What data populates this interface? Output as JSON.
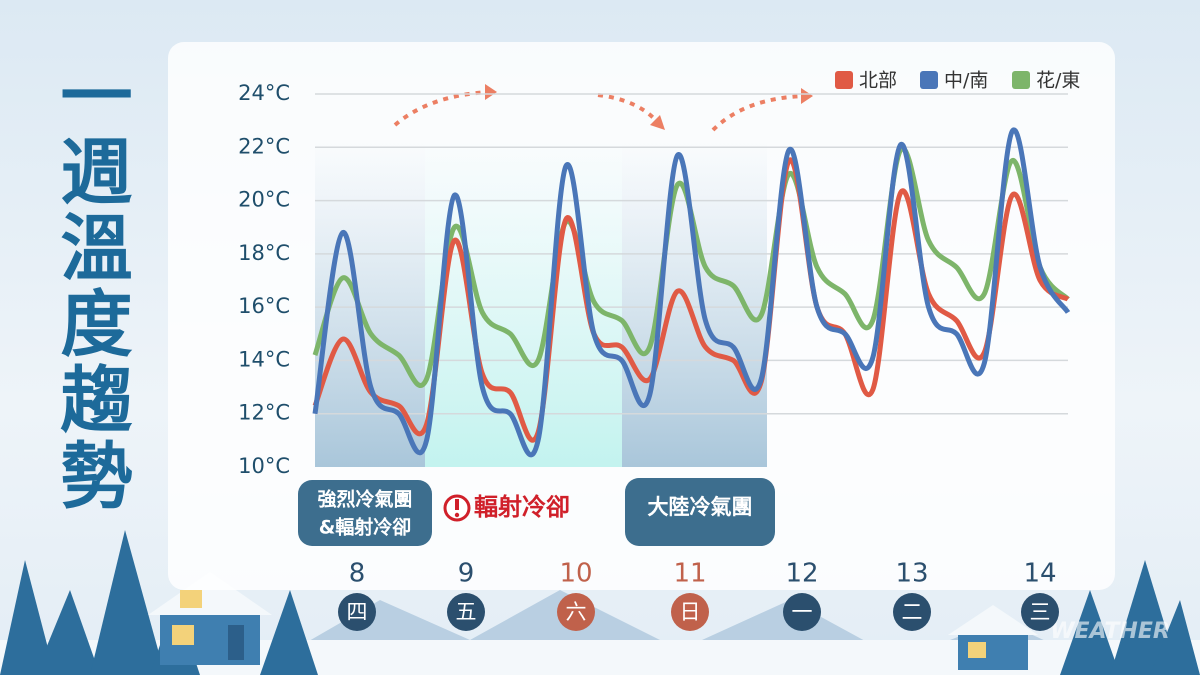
{
  "chart_data": {
    "type": "line",
    "title": "一週溫度趨勢",
    "categories": [
      null,
      null,
      null,
      null,
      null,
      null,
      null,
      null,
      null,
      null,
      null,
      null,
      null,
      null,
      null,
      null,
      null,
      null,
      null,
      null,
      null,
      null,
      null,
      null,
      null,
      null,
      null,
      null
    ],
    "series": [
      {
        "name": "北部",
        "color": "#e05a45",
        "values": [
          12.3,
          14.8,
          12.8,
          12.3,
          11.6,
          18.5,
          13.5,
          12.8,
          11.3,
          19.3,
          15,
          14.5,
          13.3,
          16.6,
          14.5,
          14,
          13.2,
          21.5,
          16,
          15,
          12.9,
          20.3,
          16.5,
          15.5,
          14.3,
          20.2,
          17,
          16.3
        ]
      },
      {
        "name": "中/南",
        "color": "#4a76b8",
        "values": [
          12,
          18.8,
          13,
          12,
          11,
          20.2,
          13,
          12,
          11,
          21.3,
          15,
          14,
          12.7,
          21.7,
          15.5,
          14.5,
          13.3,
          21.9,
          16,
          15,
          14.1,
          22.1,
          16,
          15,
          13.9,
          22.6,
          17.5,
          15.8
        ]
      },
      {
        "name": "花/東",
        "color": "#7db56a",
        "values": [
          14.2,
          17.1,
          15,
          14.2,
          13.3,
          19,
          15.8,
          15,
          14,
          19.2,
          16.2,
          15.5,
          14.5,
          20.6,
          17.5,
          16.8,
          15.7,
          21,
          17.5,
          16.5,
          15.5,
          21.9,
          18.5,
          17.5,
          16.5,
          21.5,
          17.5,
          16.3
        ]
      }
    ],
    "ylim": [
      10,
      24
    ],
    "yticks": [
      {
        "value": 10,
        "label": "10°C"
      },
      {
        "value": 12,
        "label": "12°C"
      },
      {
        "value": 14,
        "label": "14°C"
      },
      {
        "value": 16,
        "label": "16°C"
      },
      {
        "value": 18,
        "label": "18°C"
      },
      {
        "value": 20,
        "label": "20°C"
      },
      {
        "value": 22,
        "label": "22°C"
      },
      {
        "value": 24,
        "label": "24°C"
      }
    ],
    "grid": true,
    "legend": "upper right",
    "days": [
      {
        "date": "8",
        "weekday": "四",
        "color": "#2b4f6e"
      },
      {
        "date": "9",
        "weekday": "五",
        "color": "#2b4f6e"
      },
      {
        "date": "10",
        "weekday": "六",
        "color": "#c0614b"
      },
      {
        "date": "11",
        "weekday": "日",
        "color": "#c0614b"
      },
      {
        "date": "12",
        "weekday": "一",
        "color": "#2b4f6e"
      },
      {
        "date": "13",
        "weekday": "二",
        "color": "#2b4f6e"
      },
      {
        "date": "14",
        "weekday": "三",
        "color": "#2b4f6e"
      }
    ],
    "annotations": [
      "強烈冷氣團",
      "&輻射冷卻",
      "輻射冷卻",
      "大陸冷氣團"
    ],
    "watermark": "WEATHER"
  }
}
